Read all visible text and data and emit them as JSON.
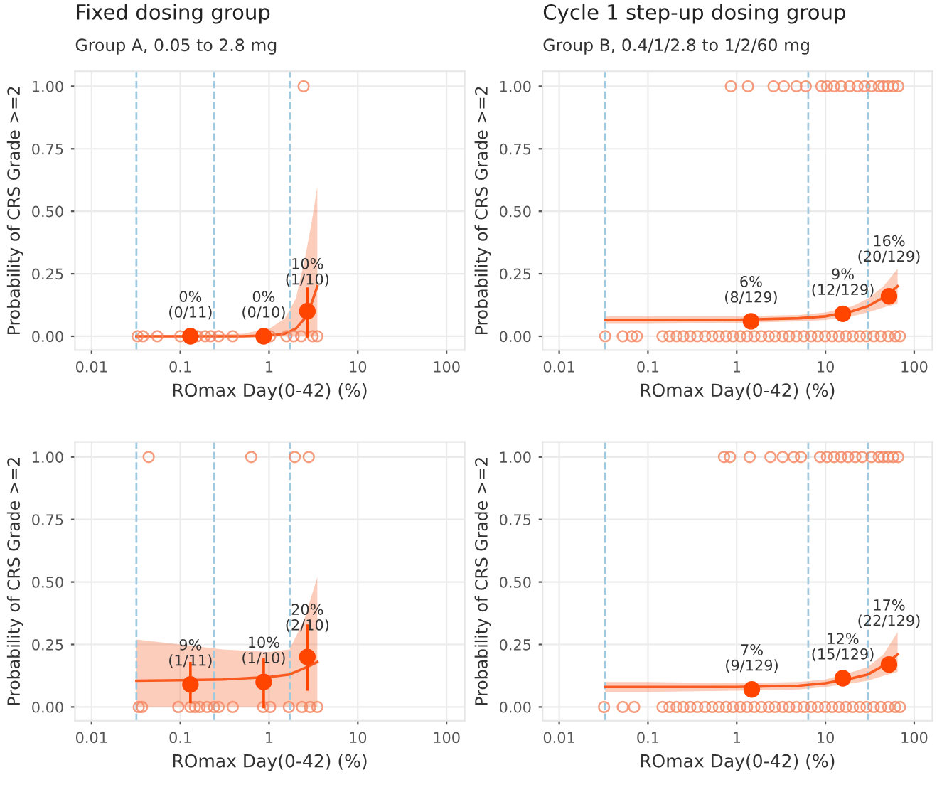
{
  "chart_data": [
    {
      "type": "scatter",
      "title": "Fixed dosing group",
      "subtitle": "Group A, 0.05 to 2.8 mg",
      "xlabel": "ROmax Day(0-42) (%)",
      "ylabel": "Probability of CRS Grade >=2",
      "log": "x",
      "grid": true,
      "marker": "circle",
      "xlim": [
        0.0065,
        160
      ],
      "xticks": [
        0.01,
        0.1,
        1,
        10,
        100
      ],
      "ylim": [
        -0.055,
        1.06
      ],
      "yticks": [
        {
          "value": 0,
          "label": "0.00"
        },
        {
          "value": 0.25,
          "label": "0.25"
        },
        {
          "value": 0.5,
          "label": "0.50"
        },
        {
          "value": 0.75,
          "label": "0.75"
        },
        {
          "value": 1,
          "label": "1.00"
        }
      ],
      "ref_lines": [
        {
          "axis": "x",
          "value": 0.032,
          "color": "#9ecae1",
          "line_style": "dashed"
        },
        {
          "axis": "x",
          "value": 0.24,
          "color": "#9ecae1",
          "line_style": "dashed"
        },
        {
          "axis": "x",
          "value": 1.72,
          "color": "#9ecae1",
          "line_style": "dashed"
        }
      ],
      "series": [
        {
          "color": "#f4845f",
          "x": [
            0.033,
            0.038,
            0.055,
            0.1,
            0.155,
            0.19,
            0.22,
            0.27,
            0.39,
            1.03,
            1.57,
            1.89,
            2.3,
            3.1,
            3.5,
            2.45
          ],
          "values": [
            0,
            0,
            0,
            0,
            0,
            0,
            0,
            0,
            0,
            0,
            0,
            0,
            0,
            0,
            0,
            1
          ]
        },
        {
          "type": "line",
          "marker": "none",
          "color": "#f85a20",
          "x": [
            0.032,
            0.1,
            0.5,
            1,
            1.5,
            2,
            2.5,
            3,
            3.5
          ],
          "values": [
            0,
            0,
            0,
            0.003,
            0.01,
            0.03,
            0.07,
            0.13,
            0.2
          ],
          "lower": [
            0,
            0,
            0,
            0,
            0,
            0,
            0,
            0,
            0
          ],
          "upper": [
            0.005,
            0.005,
            0.01,
            0.03,
            0.07,
            0.15,
            0.3,
            0.45,
            0.6
          ]
        },
        {
          "color": "#ff4500",
          "x": [
            0.13,
            0.87,
            2.7
          ],
          "values": [
            0,
            0,
            0.1
          ],
          "errors": [
            null,
            null,
            [
              0.0,
              0.19
            ]
          ]
        }
      ],
      "annotations": [
        {
          "text": "0%\n(0/11)",
          "x": 0.13,
          "y": 0
        },
        {
          "text": "0%\n(0/10)",
          "x": 0.87,
          "y": 0
        },
        {
          "text": "10%\n(1/10)",
          "x": 2.7,
          "y": 0.1
        }
      ]
    },
    {
      "type": "scatter",
      "title": "Cycle 1 step-up dosing group",
      "subtitle": "Group B, 0.4/1/2.8 to 1/2/60 mg",
      "xlabel": "ROmax Day(0-42) (%)",
      "ylabel": "Probability of CRS Grade >=2",
      "log": "x",
      "grid": true,
      "marker": "circle",
      "xlim": [
        0.0065,
        160
      ],
      "xticks": [
        0.01,
        0.1,
        1,
        10,
        100
      ],
      "ylim": [
        -0.055,
        1.06
      ],
      "yticks": [
        {
          "value": 0,
          "label": "0.00"
        },
        {
          "value": 0.25,
          "label": "0.25"
        },
        {
          "value": 0.5,
          "label": "0.50"
        },
        {
          "value": 0.75,
          "label": "0.75"
        },
        {
          "value": 1,
          "label": "1.00"
        }
      ],
      "ref_lines": [
        {
          "axis": "x",
          "value": 0.033,
          "color": "#9ecae1",
          "line_style": "dashed"
        },
        {
          "axis": "x",
          "value": 6.4,
          "color": "#9ecae1",
          "line_style": "dashed"
        },
        {
          "axis": "x",
          "value": 30,
          "color": "#9ecae1",
          "line_style": "dashed"
        }
      ],
      "series": [
        {
          "color": "#f4845f",
          "x": [
            0.033,
            0.052,
            0.066,
            0.075,
            0.146,
            0.175,
            0.21,
            0.25,
            0.3,
            0.36,
            0.44,
            0.53,
            0.63,
            0.76,
            0.91,
            1.1,
            1.31,
            1.58,
            1.89,
            2.3,
            2.7,
            3.3,
            3.9,
            4.7,
            5.7,
            6.9,
            8.2,
            9.9,
            11.9,
            14.2,
            17,
            20.3,
            24.4,
            29,
            35,
            42,
            51,
            61,
            69,
            0.86,
            1.34,
            2.6,
            3.4,
            4.7,
            6.0,
            9.0,
            10.4,
            12.5,
            15,
            18.7,
            23,
            27.6,
            33,
            40,
            45,
            51,
            58,
            66
          ],
          "values": [
            0,
            0,
            0,
            0,
            0,
            0,
            0,
            0,
            0,
            0,
            0,
            0,
            0,
            0,
            0,
            0,
            0,
            0,
            0,
            0,
            0,
            0,
            0,
            0,
            0,
            0,
            0,
            0,
            0,
            0,
            0,
            0,
            0,
            0,
            0,
            0,
            0,
            0,
            0,
            1,
            1,
            1,
            1,
            1,
            1,
            1,
            1,
            1,
            1,
            1,
            1,
            1,
            1,
            1,
            1,
            1,
            1,
            1
          ]
        },
        {
          "type": "line",
          "marker": "none",
          "color": "#f85a20",
          "x": [
            0.033,
            0.1,
            1,
            5,
            10,
            20,
            30,
            45,
            65
          ],
          "values": [
            0.065,
            0.065,
            0.066,
            0.072,
            0.08,
            0.1,
            0.12,
            0.155,
            0.2
          ],
          "lower": [
            0.05,
            0.05,
            0.053,
            0.06,
            0.065,
            0.08,
            0.095,
            0.115,
            0.13
          ],
          "upper": [
            0.08,
            0.08,
            0.08,
            0.085,
            0.095,
            0.12,
            0.15,
            0.2,
            0.27
          ]
        },
        {
          "color": "#ff4500",
          "x": [
            1.45,
            15.7,
            52
          ],
          "values": [
            0.06,
            0.09,
            0.16
          ]
        }
      ],
      "annotations": [
        {
          "text": "6%\n(8/129)",
          "x": 1.45,
          "y": 0.06
        },
        {
          "text": "9%\n(12/129)",
          "x": 15.7,
          "y": 0.09
        },
        {
          "text": "16%\n(20/129)",
          "x": 52,
          "y": 0.16
        }
      ]
    },
    {
      "type": "scatter",
      "xlabel": "ROmax Day(0-42) (%)",
      "ylabel": "Probability of CRS Grade >=2",
      "log": "x",
      "grid": true,
      "marker": "circle",
      "xlim": [
        0.0065,
        160
      ],
      "xticks": [
        0.01,
        0.1,
        1,
        10,
        100
      ],
      "ylim": [
        -0.055,
        1.06
      ],
      "yticks": [
        {
          "value": 0,
          "label": "0.00"
        },
        {
          "value": 0.25,
          "label": "0.25"
        },
        {
          "value": 0.5,
          "label": "0.50"
        },
        {
          "value": 0.75,
          "label": "0.75"
        },
        {
          "value": 1,
          "label": "1.00"
        }
      ],
      "ref_lines": [
        {
          "axis": "x",
          "value": 0.032,
          "color": "#9ecae1",
          "line_style": "dashed"
        },
        {
          "axis": "x",
          "value": 0.24,
          "color": "#9ecae1",
          "line_style": "dashed"
        },
        {
          "axis": "x",
          "value": 1.72,
          "color": "#9ecae1",
          "line_style": "dashed"
        }
      ],
      "series": [
        {
          "color": "#f4845f",
          "x": [
            0.034,
            0.037,
            0.095,
            0.13,
            0.146,
            0.165,
            0.2,
            0.24,
            0.27,
            0.39,
            0.86,
            1.03,
            1.67,
            2.35,
            2.9,
            3.5,
            0.044,
            0.63,
            1.95,
            2.8
          ],
          "values": [
            0,
            0,
            0,
            0,
            0,
            0,
            0,
            0,
            0,
            0,
            0,
            0,
            0,
            0,
            0,
            0,
            1,
            1,
            1,
            1
          ]
        },
        {
          "type": "line",
          "marker": "none",
          "color": "#f85a20",
          "x": [
            0.032,
            0.1,
            0.3,
            1,
            1.7,
            2.5,
            3.5
          ],
          "values": [
            0.105,
            0.107,
            0.11,
            0.12,
            0.13,
            0.155,
            0.18
          ],
          "lower": [
            0,
            0,
            0,
            0,
            0,
            0,
            0
          ],
          "upper": [
            0.27,
            0.25,
            0.23,
            0.22,
            0.23,
            0.35,
            0.52
          ]
        },
        {
          "color": "#ff4500",
          "x": [
            0.13,
            0.87,
            2.7
          ],
          "values": [
            0.09,
            0.1,
            0.2
          ],
          "errors": [
            [
              0.02,
              0.175
            ],
            [
              0.0,
              0.19
            ],
            [
              0.07,
              0.325
            ]
          ]
        }
      ],
      "annotations": [
        {
          "text": "9%\n(1/11)",
          "x": 0.13,
          "y": 0.09
        },
        {
          "text": "10%\n(1/10)",
          "x": 0.87,
          "y": 0.1
        },
        {
          "text": "20%\n(2/10)",
          "x": 2.7,
          "y": 0.2
        }
      ]
    },
    {
      "type": "scatter",
      "xlabel": "ROmax Day(0-42) (%)",
      "ylabel": "Probability of CRS Grade >=2",
      "log": "x",
      "grid": true,
      "marker": "circle",
      "xlim": [
        0.0065,
        160
      ],
      "xticks": [
        0.01,
        0.1,
        1,
        10,
        100
      ],
      "ylim": [
        -0.055,
        1.06
      ],
      "yticks": [
        {
          "value": 0,
          "label": "0.00"
        },
        {
          "value": 0.25,
          "label": "0.25"
        },
        {
          "value": 0.5,
          "label": "0.50"
        },
        {
          "value": 0.75,
          "label": "0.75"
        },
        {
          "value": 1,
          "label": "1.00"
        }
      ],
      "ref_lines": [
        {
          "axis": "x",
          "value": 0.033,
          "color": "#9ecae1",
          "line_style": "dashed"
        },
        {
          "axis": "x",
          "value": 6.4,
          "color": "#9ecae1",
          "line_style": "dashed"
        },
        {
          "axis": "x",
          "value": 30,
          "color": "#9ecae1",
          "line_style": "dashed"
        }
      ],
      "series": [
        {
          "color": "#f4845f",
          "x": [
            0.032,
            0.052,
            0.07,
            0.146,
            0.175,
            0.21,
            0.25,
            0.3,
            0.36,
            0.44,
            0.53,
            0.63,
            0.76,
            0.91,
            1.1,
            1.31,
            1.58,
            1.89,
            2.3,
            2.7,
            3.3,
            3.9,
            4.7,
            5.7,
            6.9,
            8.2,
            9.9,
            11.9,
            14.2,
            17,
            20.3,
            24.4,
            29,
            35,
            42,
            51,
            61,
            69,
            0.72,
            0.84,
            1.4,
            2.4,
            3.3,
            4.4,
            5.3,
            8.7,
            10.4,
            12.5,
            15,
            18,
            21.7,
            26,
            33,
            40,
            45,
            51,
            58,
            66
          ],
          "values": [
            0,
            0,
            0,
            0,
            0,
            0,
            0,
            0,
            0,
            0,
            0,
            0,
            0,
            0,
            0,
            0,
            0,
            0,
            0,
            0,
            0,
            0,
            0,
            0,
            0,
            0,
            0,
            0,
            0,
            0,
            0,
            0,
            0,
            0,
            0,
            0,
            0,
            0,
            1,
            1,
            1,
            1,
            1,
            1,
            1,
            1,
            1,
            1,
            1,
            1,
            1,
            1,
            1,
            1,
            1,
            1,
            1,
            1
          ]
        },
        {
          "type": "line",
          "marker": "none",
          "color": "#f85a20",
          "x": [
            0.033,
            0.1,
            1,
            5,
            10,
            20,
            30,
            45,
            65
          ],
          "values": [
            0.08,
            0.08,
            0.08,
            0.085,
            0.095,
            0.115,
            0.13,
            0.165,
            0.21
          ],
          "lower": [
            0.06,
            0.06,
            0.065,
            0.07,
            0.08,
            0.095,
            0.105,
            0.125,
            0.14
          ],
          "upper": [
            0.1,
            0.1,
            0.095,
            0.1,
            0.11,
            0.14,
            0.16,
            0.21,
            0.3
          ]
        },
        {
          "color": "#ff4500",
          "x": [
            1.48,
            15.7,
            52
          ],
          "values": [
            0.07,
            0.115,
            0.17
          ]
        }
      ],
      "annotations": [
        {
          "text": "7%\n(9/129)",
          "x": 1.48,
          "y": 0.07
        },
        {
          "text": "12%\n(15/129)",
          "x": 15.7,
          "y": 0.115
        },
        {
          "text": "17%\n(22/129)",
          "x": 52,
          "y": 0.17
        }
      ]
    }
  ]
}
